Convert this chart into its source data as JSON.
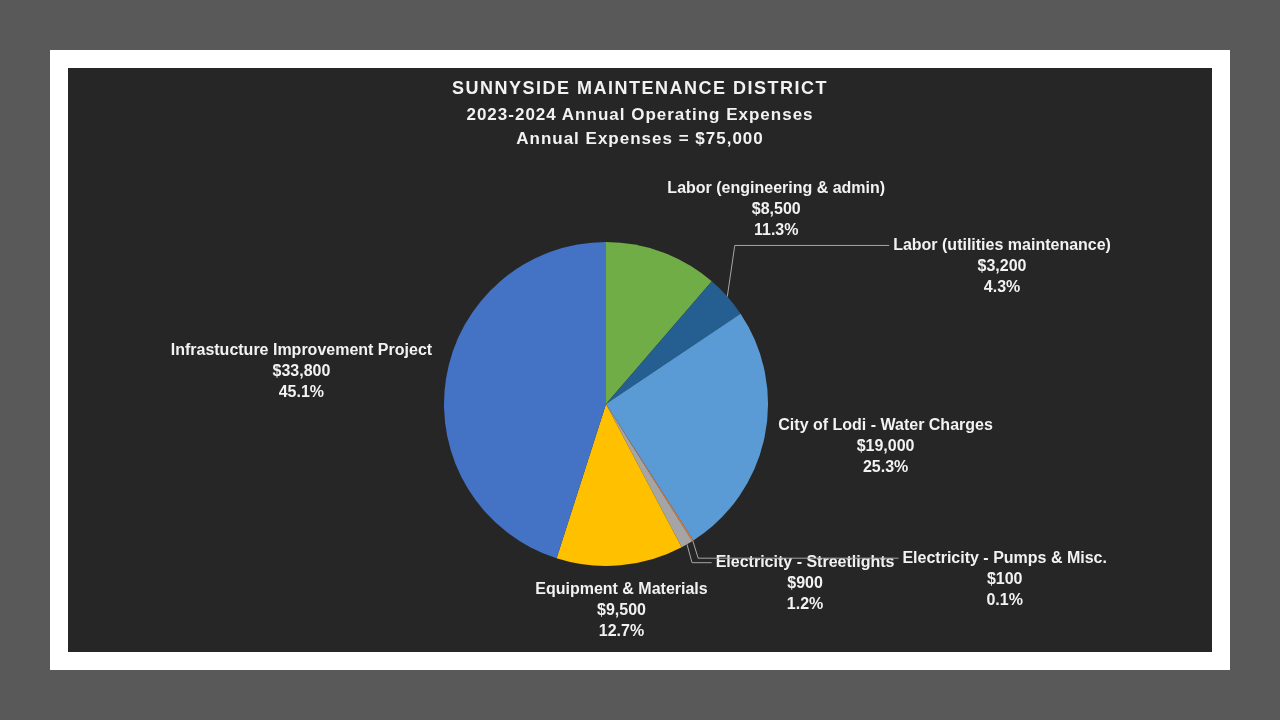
{
  "chart_data": {
    "type": "pie",
    "title": "SUNNYSIDE MAINTENANCE DISTRICT",
    "subtitle": "2023-2024 Annual Operating Expenses",
    "annotations": [
      "Annual Expenses = $75,000"
    ],
    "categories": [
      "Labor (engineering & admin)",
      "Labor (utilities maintenance)",
      "City of Lodi - Water Charges",
      "Electricity - Pumps & Misc.",
      "Electricity - Streetlights",
      "Equipment & Materials",
      "Infrastucture Improvement Project"
    ],
    "values": [
      8500,
      3200,
      19000,
      100,
      900,
      9500,
      33800
    ],
    "colors": [
      "#70ad47",
      "#255e91",
      "#5b9bd5",
      "#ed7d31",
      "#a5a5a5",
      "#ffc000",
      "#4472c4"
    ],
    "value_labels": [
      "$8,500\n11.3%",
      "$3,200\n4.3%",
      "$19,000\n25.3%",
      "$100\n0.1%",
      "$900\n1.2%",
      "$9,500\n12.7%",
      "$33,800\n45.1%"
    ],
    "legend": false
  }
}
